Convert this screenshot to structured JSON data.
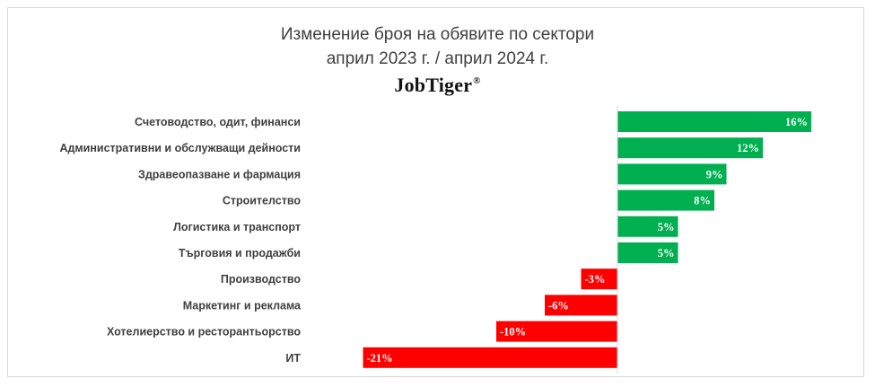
{
  "chart_data": {
    "type": "bar",
    "orientation": "horizontal",
    "title": "Изменение броя на обявите по сектори",
    "subtitle": "април 2023 г. / април 2024 г.",
    "brand": "JobTiger",
    "brand_mark": "®",
    "categories": [
      "Счетоводство, одит, финанси",
      "Административни и обслужващи дейности",
      "Здравеопазване и фармация",
      "Строителство",
      "Логистика и транспорт",
      "Търговия и продажби",
      "Производство",
      "Маркетинг и реклама",
      "Хотелиерство и ресторантьорство",
      "ИТ"
    ],
    "values": [
      16,
      12,
      9,
      8,
      5,
      5,
      -3,
      -6,
      -10,
      -21
    ],
    "data_labels": [
      "16%",
      "12%",
      "9%",
      "8%",
      "5%",
      "5%",
      "-3%",
      "-6%",
      "-10%",
      "-21%"
    ],
    "unit": "%",
    "colors": {
      "positive": "#00b050",
      "negative": "#ff0000",
      "axis": "#d9d9d9"
    },
    "xlim": [
      -21,
      16
    ],
    "grid": false,
    "legend": "none"
  }
}
